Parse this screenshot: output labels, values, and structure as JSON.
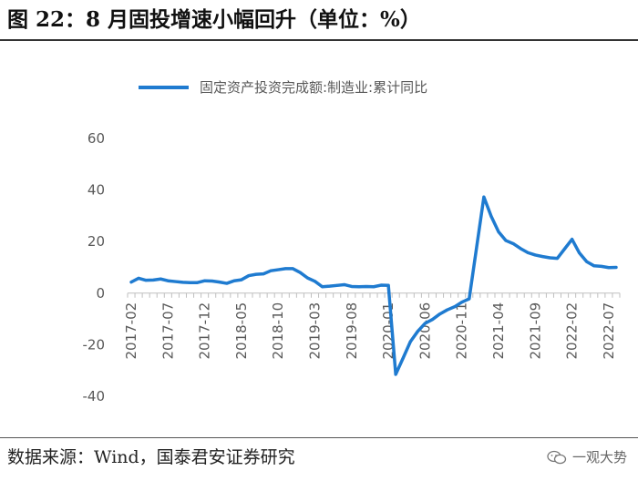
{
  "figure_title": "图 22：8 月固投增速小幅回升（单位：%）",
  "source": "数据来源：Wind，国泰君安证券研究",
  "watermark": "一观大势",
  "colors": {
    "line": "#1f7bd0",
    "axis": "#bfbfbf",
    "text": "#595959"
  },
  "chart_data": {
    "type": "line",
    "legend_position": "top",
    "grid": false,
    "ylim": [
      -40,
      60
    ],
    "yticks": [
      -40,
      -20,
      0,
      20,
      40,
      60
    ],
    "x_tick_labels": [
      "2017-02",
      "2017-07",
      "2017-12",
      "2018-05",
      "2018-10",
      "2019-03",
      "2019-08",
      "2020-01",
      "2020-06",
      "2020-11",
      "2021-04",
      "2021-09",
      "2022-02",
      "2022-07"
    ],
    "x": [
      "2017-02",
      "2017-03",
      "2017-04",
      "2017-05",
      "2017-06",
      "2017-07",
      "2017-08",
      "2017-09",
      "2017-10",
      "2017-11",
      "2017-12",
      "2018-01",
      "2018-02",
      "2018-03",
      "2018-04",
      "2018-05",
      "2018-06",
      "2018-07",
      "2018-08",
      "2018-09",
      "2018-10",
      "2018-11",
      "2018-12",
      "2019-01",
      "2019-02",
      "2019-03",
      "2019-04",
      "2019-05",
      "2019-06",
      "2019-07",
      "2019-08",
      "2019-09",
      "2019-10",
      "2019-11",
      "2019-12",
      "2020-01",
      "2020-02",
      "2020-03",
      "2020-04",
      "2020-05",
      "2020-06",
      "2020-07",
      "2020-08",
      "2020-09",
      "2020-10",
      "2020-11",
      "2020-12",
      "2021-01",
      "2021-02",
      "2021-03",
      "2021-04",
      "2021-05",
      "2021-06",
      "2021-07",
      "2021-08",
      "2021-09",
      "2021-10",
      "2021-11",
      "2021-12",
      "2022-01",
      "2022-02",
      "2022-03",
      "2022-04",
      "2022-05",
      "2022-06",
      "2022-07",
      "2022-08"
    ],
    "series": [
      {
        "name": "固定资产投资完成额:制造业:累计同比",
        "values": [
          4.3,
          5.8,
          5.0,
          5.1,
          5.5,
          4.8,
          4.5,
          4.2,
          4.1,
          4.1,
          4.8,
          4.7,
          4.3,
          3.8,
          4.8,
          5.2,
          6.8,
          7.3,
          7.5,
          8.7,
          9.1,
          9.5,
          9.5,
          8.0,
          5.9,
          4.6,
          2.5,
          2.7,
          3.0,
          3.3,
          2.6,
          2.5,
          2.6,
          2.5,
          3.1,
          3.0,
          -31.5,
          -25.2,
          -18.8,
          -14.8,
          -11.7,
          -10.2,
          -8.1,
          -6.5,
          -5.3,
          -3.5,
          -2.2,
          null,
          37.3,
          29.8,
          23.8,
          20.4,
          19.2,
          17.3,
          15.7,
          14.8,
          14.2,
          13.7,
          13.5,
          null,
          20.9,
          15.6,
          12.2,
          10.6,
          10.4,
          9.9,
          10.0
        ]
      }
    ]
  }
}
